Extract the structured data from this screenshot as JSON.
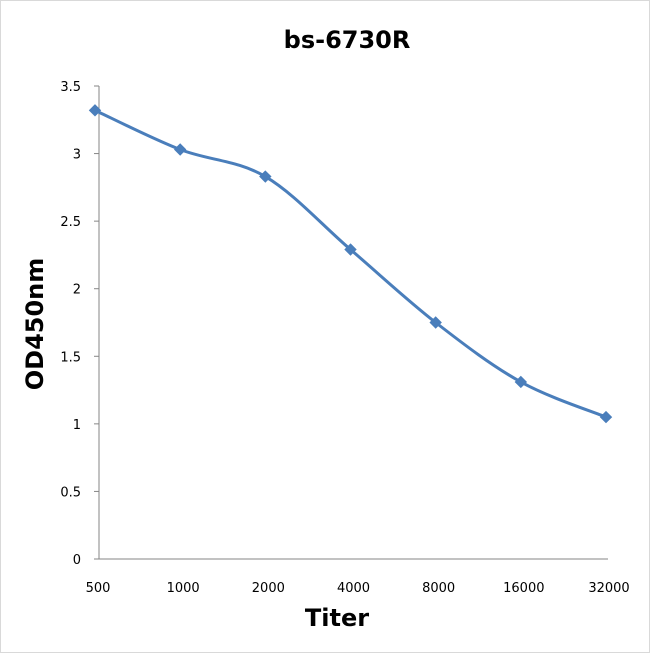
{
  "chart_data": {
    "type": "line",
    "title": "bs-6730R",
    "xlabel": "Titer",
    "ylabel": "OD450nm",
    "categories": [
      "500",
      "1000",
      "2000",
      "4000",
      "8000",
      "16000",
      "32000"
    ],
    "series": [
      {
        "values": [
          3.32,
          3.03,
          2.83,
          2.29,
          1.75,
          1.31,
          1.05
        ]
      }
    ],
    "yticks": [
      "0",
      "0.5",
      "1",
      "1.5",
      "2",
      "2.5",
      "3",
      "3.5"
    ],
    "ylim": [
      0,
      3.5
    ],
    "grid": false,
    "legend": "none",
    "smooth": true,
    "marker": "diamond",
    "line_color": "#4a7ebb"
  }
}
